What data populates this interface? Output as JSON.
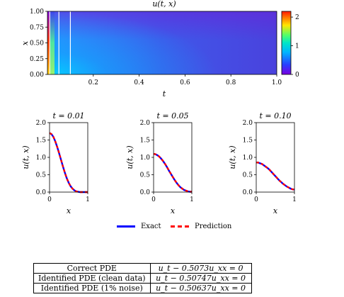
{
  "chart_data": [
    {
      "type": "heatmap",
      "title": "u(t, x)",
      "xlabel": "t",
      "ylabel": "x",
      "xlim": [
        0.0,
        1.0
      ],
      "ylim": [
        0.0,
        1.0
      ],
      "xticks": [
        "0.2",
        "0.4",
        "0.6",
        "0.8",
        "1.0"
      ],
      "yticks": [
        "0.00",
        "0.25",
        "0.50",
        "0.75",
        "1.00"
      ],
      "colorbar": {
        "min": 0,
        "max": 2.2,
        "ticks": [
          "0",
          "1",
          "2"
        ],
        "colormap": "jet"
      },
      "snapshot_lines_t": [
        0.01,
        0.05,
        0.1
      ]
    },
    {
      "type": "line",
      "title": "t = 0.01",
      "xlabel": "x",
      "ylabel": "u(t, x)",
      "xlim": [
        0,
        1
      ],
      "ylim": [
        0.0,
        2.0
      ],
      "xticks": [
        "0",
        "1"
      ],
      "yticks": [
        "0.0",
        "0.5",
        "1.0",
        "1.5",
        "2.0"
      ],
      "series": [
        {
          "name": "Exact",
          "x": [
            0.0,
            0.05,
            0.1,
            0.15,
            0.2,
            0.25,
            0.3,
            0.35,
            0.4,
            0.45,
            0.5,
            0.55,
            0.6,
            0.65,
            0.7,
            0.75,
            0.8,
            0.85,
            0.9,
            0.95,
            1.0
          ],
          "y": [
            1.7,
            1.67,
            1.59,
            1.46,
            1.3,
            1.12,
            0.93,
            0.74,
            0.56,
            0.4,
            0.27,
            0.17,
            0.1,
            0.05,
            0.02,
            0.01,
            0.0,
            0.0,
            0.0,
            0.0,
            0.0
          ]
        },
        {
          "name": "Prediction",
          "x": [
            0.0,
            0.05,
            0.1,
            0.15,
            0.2,
            0.25,
            0.3,
            0.35,
            0.4,
            0.45,
            0.5,
            0.55,
            0.6,
            0.65,
            0.7,
            0.75,
            0.8,
            0.85,
            0.9,
            0.95,
            1.0
          ],
          "y": [
            1.7,
            1.67,
            1.59,
            1.46,
            1.3,
            1.12,
            0.93,
            0.74,
            0.56,
            0.4,
            0.27,
            0.17,
            0.1,
            0.05,
            0.02,
            0.01,
            0.0,
            0.0,
            0.0,
            0.0,
            0.0
          ]
        }
      ]
    },
    {
      "type": "line",
      "title": "t = 0.05",
      "xlabel": "x",
      "ylabel": "u(t, x)",
      "xlim": [
        0,
        1
      ],
      "ylim": [
        0.0,
        2.0
      ],
      "xticks": [
        "0",
        "1"
      ],
      "yticks": [
        "0.0",
        "0.5",
        "1.0",
        "1.5",
        "2.0"
      ],
      "series": [
        {
          "name": "Exact",
          "x": [
            0.0,
            0.05,
            0.1,
            0.15,
            0.2,
            0.25,
            0.3,
            0.35,
            0.4,
            0.45,
            0.5,
            0.55,
            0.6,
            0.65,
            0.7,
            0.75,
            0.8,
            0.85,
            0.9,
            0.95,
            1.0
          ],
          "y": [
            1.1,
            1.09,
            1.06,
            1.02,
            0.96,
            0.89,
            0.81,
            0.72,
            0.62,
            0.53,
            0.44,
            0.35,
            0.27,
            0.2,
            0.14,
            0.1,
            0.06,
            0.04,
            0.02,
            0.01,
            0.01
          ]
        },
        {
          "name": "Prediction",
          "x": [
            0.0,
            0.05,
            0.1,
            0.15,
            0.2,
            0.25,
            0.3,
            0.35,
            0.4,
            0.45,
            0.5,
            0.55,
            0.6,
            0.65,
            0.7,
            0.75,
            0.8,
            0.85,
            0.9,
            0.95,
            1.0
          ],
          "y": [
            1.1,
            1.09,
            1.06,
            1.02,
            0.96,
            0.89,
            0.81,
            0.72,
            0.62,
            0.53,
            0.44,
            0.35,
            0.27,
            0.2,
            0.14,
            0.1,
            0.06,
            0.04,
            0.02,
            0.01,
            0.01
          ]
        }
      ]
    },
    {
      "type": "line",
      "title": "t = 0.10",
      "xlabel": "x",
      "ylabel": "u(t, x)",
      "xlim": [
        0,
        1
      ],
      "ylim": [
        0.0,
        2.0
      ],
      "xticks": [
        "0",
        "1"
      ],
      "yticks": [
        "0.0",
        "0.5",
        "1.0",
        "1.5",
        "2.0"
      ],
      "series": [
        {
          "name": "Exact",
          "x": [
            0.0,
            0.05,
            0.1,
            0.15,
            0.2,
            0.25,
            0.3,
            0.35,
            0.4,
            0.45,
            0.5,
            0.55,
            0.6,
            0.65,
            0.7,
            0.75,
            0.8,
            0.85,
            0.9,
            0.95,
            1.0
          ],
          "y": [
            0.85,
            0.85,
            0.83,
            0.81,
            0.77,
            0.73,
            0.69,
            0.64,
            0.58,
            0.52,
            0.46,
            0.4,
            0.34,
            0.29,
            0.24,
            0.2,
            0.16,
            0.13,
            0.1,
            0.08,
            0.07
          ]
        },
        {
          "name": "Prediction",
          "x": [
            0.0,
            0.05,
            0.1,
            0.15,
            0.2,
            0.25,
            0.3,
            0.35,
            0.4,
            0.45,
            0.5,
            0.55,
            0.6,
            0.65,
            0.7,
            0.75,
            0.8,
            0.85,
            0.9,
            0.95,
            1.0
          ],
          "y": [
            0.85,
            0.85,
            0.83,
            0.81,
            0.77,
            0.73,
            0.69,
            0.64,
            0.58,
            0.52,
            0.46,
            0.4,
            0.34,
            0.29,
            0.24,
            0.2,
            0.16,
            0.13,
            0.1,
            0.08,
            0.07
          ]
        }
      ]
    }
  ],
  "colors": {
    "exact": "#0000ff",
    "prediction": "#ff0000",
    "snapshot_line": "#ffffff"
  },
  "legend": {
    "exact_label": "Exact",
    "prediction_label": "Prediction"
  },
  "table": {
    "rows": [
      {
        "label": "Correct PDE",
        "equation": "u_t − 0.5073u_xx = 0"
      },
      {
        "label": "Identified PDE (clean data)",
        "equation": "u_t − 0.50747u_xx = 0"
      },
      {
        "label": "Identified PDE (1% noise)",
        "equation": "u_t − 0.50637u_xx = 0"
      }
    ]
  }
}
